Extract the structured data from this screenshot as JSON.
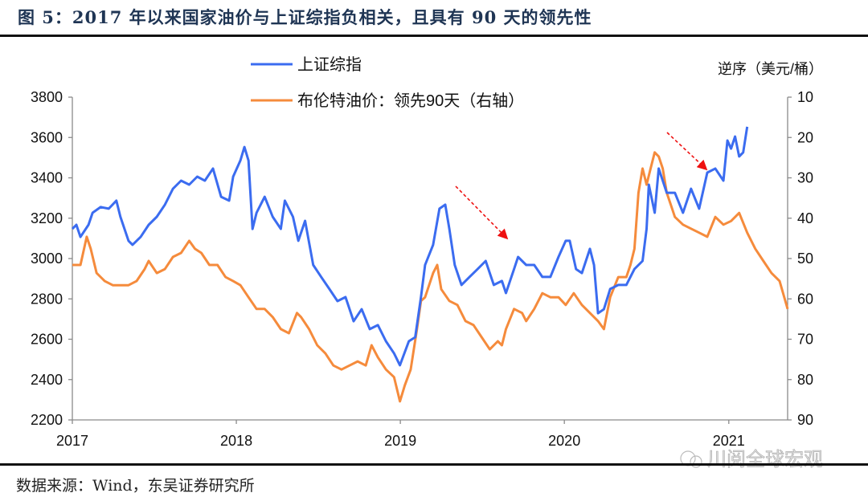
{
  "title": "图 5：2017 年以来国家油价与上证综指负相关，且具有 90 天的领先性",
  "source": "数据来源：Wind，东吴证券研究所",
  "watermark": "川阅全球宏观",
  "chart_data": {
    "type": "line",
    "title": "图 5：2017 年以来国家油价与上证综指负相关，且具有 90 天的领先性",
    "xlabel": "",
    "ylabel": "",
    "y2label": "逆序（美元/桶）",
    "x_ticks": [
      "2017",
      "2018",
      "2019",
      "2020",
      "2021"
    ],
    "xlim": [
      "2017-01-01",
      "2021-05-15"
    ],
    "ylim": [
      2200,
      3800
    ],
    "y_ticks": [
      "2200",
      "2400",
      "2600",
      "2800",
      "3000",
      "3200",
      "3400",
      "3600",
      "3800"
    ],
    "y2lim": [
      10,
      90
    ],
    "y2_inverted": true,
    "y2_ticks": [
      "10",
      "20",
      "30",
      "40",
      "50",
      "60",
      "70",
      "80",
      "90"
    ],
    "grid": false,
    "legend_position": "top-center",
    "annotations": [
      "red dashed arrow pointing down-right near 2019-09",
      "red dashed arrow pointing down-right near 2020-11"
    ],
    "series": [
      {
        "name": "上证综指",
        "axis": "left",
        "color": "#3b6cf0",
        "points": [
          [
            "2017-01-01",
            3147
          ],
          [
            "2017-01-10",
            3167
          ],
          [
            "2017-01-19",
            3107
          ],
          [
            "2017-02-06",
            3167
          ],
          [
            "2017-02-15",
            3227
          ],
          [
            "2017-03-05",
            3255
          ],
          [
            "2017-03-23",
            3247
          ],
          [
            "2017-04-09",
            3287
          ],
          [
            "2017-04-18",
            3207
          ],
          [
            "2017-05-06",
            3088
          ],
          [
            "2017-05-15",
            3068
          ],
          [
            "2017-06-02",
            3107
          ],
          [
            "2017-06-20",
            3167
          ],
          [
            "2017-07-08",
            3207
          ],
          [
            "2017-07-26",
            3267
          ],
          [
            "2017-08-13",
            3346
          ],
          [
            "2017-08-31",
            3386
          ],
          [
            "2017-09-18",
            3366
          ],
          [
            "2017-10-06",
            3406
          ],
          [
            "2017-10-23",
            3386
          ],
          [
            "2017-11-10",
            3446
          ],
          [
            "2017-11-28",
            3306
          ],
          [
            "2017-12-16",
            3287
          ],
          [
            "2017-12-25",
            3406
          ],
          [
            "2018-01-10",
            3486
          ],
          [
            "2018-01-19",
            3553
          ],
          [
            "2018-01-28",
            3486
          ],
          [
            "2018-02-06",
            3147
          ],
          [
            "2018-02-15",
            3227
          ],
          [
            "2018-03-05",
            3306
          ],
          [
            "2018-03-23",
            3207
          ],
          [
            "2018-04-10",
            3147
          ],
          [
            "2018-04-19",
            3287
          ],
          [
            "2018-05-07",
            3207
          ],
          [
            "2018-05-19",
            3088
          ],
          [
            "2018-06-03",
            3187
          ],
          [
            "2018-06-21",
            2968
          ],
          [
            "2018-07-09",
            2908
          ],
          [
            "2018-07-27",
            2849
          ],
          [
            "2018-08-14",
            2789
          ],
          [
            "2018-09-01",
            2809
          ],
          [
            "2018-09-19",
            2689
          ],
          [
            "2018-10-07",
            2749
          ],
          [
            "2018-10-25",
            2650
          ],
          [
            "2018-11-12",
            2670
          ],
          [
            "2018-11-30",
            2590
          ],
          [
            "2018-12-18",
            2530
          ],
          [
            "2018-12-31",
            2471
          ],
          [
            "2019-01-20",
            2590
          ],
          [
            "2019-02-03",
            2610
          ],
          [
            "2019-02-16",
            2809
          ],
          [
            "2019-02-25",
            2968
          ],
          [
            "2019-03-15",
            3068
          ],
          [
            "2019-03-29",
            3247
          ],
          [
            "2019-04-11",
            3267
          ],
          [
            "2019-04-20",
            3147
          ],
          [
            "2019-05-02",
            2968
          ],
          [
            "2019-05-17",
            2869
          ],
          [
            "2019-06-04",
            2909
          ],
          [
            "2019-06-22",
            2948
          ],
          [
            "2019-07-10",
            2988
          ],
          [
            "2019-07-28",
            2869
          ],
          [
            "2019-08-15",
            2889
          ],
          [
            "2019-08-24",
            2829
          ],
          [
            "2019-09-11",
            2948
          ],
          [
            "2019-09-20",
            3008
          ],
          [
            "2019-10-08",
            2968
          ],
          [
            "2019-10-26",
            2968
          ],
          [
            "2019-11-13",
            2909
          ],
          [
            "2019-12-01",
            2909
          ],
          [
            "2019-12-19",
            3008
          ],
          [
            "2020-01-04",
            3088
          ],
          [
            "2020-01-13",
            3088
          ],
          [
            "2020-01-27",
            2948
          ],
          [
            "2020-02-09",
            2928
          ],
          [
            "2020-02-27",
            3048
          ],
          [
            "2020-03-07",
            2968
          ],
          [
            "2020-03-16",
            2729
          ],
          [
            "2020-03-29",
            2749
          ],
          [
            "2020-04-12",
            2849
          ],
          [
            "2020-04-30",
            2869
          ],
          [
            "2020-05-18",
            2869
          ],
          [
            "2020-06-05",
            2948
          ],
          [
            "2020-06-23",
            2988
          ],
          [
            "2020-07-02",
            3147
          ],
          [
            "2020-07-07",
            3366
          ],
          [
            "2020-07-20",
            3227
          ],
          [
            "2020-07-29",
            3446
          ],
          [
            "2020-08-16",
            3326
          ],
          [
            "2020-09-03",
            3326
          ],
          [
            "2020-09-21",
            3227
          ],
          [
            "2020-10-09",
            3346
          ],
          [
            "2020-10-27",
            3247
          ],
          [
            "2020-11-14",
            3426
          ],
          [
            "2020-12-02",
            3446
          ],
          [
            "2020-12-20",
            3386
          ],
          [
            "2020-12-29",
            3585
          ],
          [
            "2021-01-06",
            3545
          ],
          [
            "2021-01-15",
            3605
          ],
          [
            "2021-01-24",
            3506
          ],
          [
            "2021-02-02",
            3526
          ],
          [
            "2021-02-11",
            3653
          ]
        ]
      },
      {
        "name": "布伦特油价：领先90天（右轴）",
        "axis": "right",
        "color": "#f58b3c",
        "points": [
          [
            "2017-01-01",
            51.6
          ],
          [
            "2017-01-19",
            51.6
          ],
          [
            "2017-02-02",
            44.6
          ],
          [
            "2017-02-11",
            47.6
          ],
          [
            "2017-02-24",
            53.6
          ],
          [
            "2017-03-14",
            55.6
          ],
          [
            "2017-04-01",
            56.6
          ],
          [
            "2017-04-18",
            56.6
          ],
          [
            "2017-05-06",
            56.6
          ],
          [
            "2017-05-24",
            55.6
          ],
          [
            "2017-06-11",
            52.6
          ],
          [
            "2017-06-20",
            50.6
          ],
          [
            "2017-07-08",
            53.6
          ],
          [
            "2017-07-26",
            52.6
          ],
          [
            "2017-08-13",
            49.6
          ],
          [
            "2017-08-31",
            48.6
          ],
          [
            "2017-09-18",
            45.6
          ],
          [
            "2017-10-01",
            47.6
          ],
          [
            "2017-10-15",
            48.6
          ],
          [
            "2017-11-02",
            51.6
          ],
          [
            "2017-11-20",
            51.6
          ],
          [
            "2017-12-08",
            54.6
          ],
          [
            "2017-12-25",
            55.6
          ],
          [
            "2018-01-10",
            56.6
          ],
          [
            "2018-01-28",
            59.6
          ],
          [
            "2018-02-15",
            62.5
          ],
          [
            "2018-03-05",
            62.5
          ],
          [
            "2018-03-23",
            64.5
          ],
          [
            "2018-04-10",
            67.5
          ],
          [
            "2018-04-28",
            68.5
          ],
          [
            "2018-05-16",
            63.5
          ],
          [
            "2018-05-25",
            64.5
          ],
          [
            "2018-06-12",
            67.5
          ],
          [
            "2018-06-30",
            71.5
          ],
          [
            "2018-07-18",
            73.5
          ],
          [
            "2018-08-05",
            76.5
          ],
          [
            "2018-08-23",
            77.5
          ],
          [
            "2018-09-10",
            76.5
          ],
          [
            "2018-09-28",
            75.5
          ],
          [
            "2018-10-16",
            76.5
          ],
          [
            "2018-10-29",
            71.5
          ],
          [
            "2018-11-12",
            74.5
          ],
          [
            "2018-11-30",
            77.5
          ],
          [
            "2018-12-18",
            79.4
          ],
          [
            "2018-12-31",
            85.4
          ],
          [
            "2019-01-11",
            81.4
          ],
          [
            "2019-01-24",
            77.5
          ],
          [
            "2019-02-07",
            67.5
          ],
          [
            "2019-02-16",
            60.5
          ],
          [
            "2019-02-25",
            59.6
          ],
          [
            "2019-03-15",
            53.6
          ],
          [
            "2019-03-24",
            51.6
          ],
          [
            "2019-04-02",
            57.6
          ],
          [
            "2019-04-20",
            60.5
          ],
          [
            "2019-05-08",
            61.5
          ],
          [
            "2019-05-26",
            65.5
          ],
          [
            "2019-06-13",
            66.5
          ],
          [
            "2019-07-01",
            69.5
          ],
          [
            "2019-07-19",
            72.5
          ],
          [
            "2019-08-06",
            70.5
          ],
          [
            "2019-08-15",
            71.5
          ],
          [
            "2019-08-24",
            67.5
          ],
          [
            "2019-09-11",
            62.5
          ],
          [
            "2019-09-29",
            63.5
          ],
          [
            "2019-10-08",
            65.5
          ],
          [
            "2019-10-26",
            62.5
          ],
          [
            "2019-11-13",
            58.6
          ],
          [
            "2019-12-01",
            59.6
          ],
          [
            "2019-12-19",
            59.6
          ],
          [
            "2020-01-04",
            61.5
          ],
          [
            "2020-01-22",
            58.6
          ],
          [
            "2020-02-09",
            61.5
          ],
          [
            "2020-02-27",
            63.5
          ],
          [
            "2020-03-16",
            65.5
          ],
          [
            "2020-03-29",
            67.5
          ],
          [
            "2020-04-12",
            59.6
          ],
          [
            "2020-04-30",
            54.6
          ],
          [
            "2020-05-18",
            54.6
          ],
          [
            "2020-05-27",
            51.6
          ],
          [
            "2020-06-05",
            47.6
          ],
          [
            "2020-06-14",
            33.7
          ],
          [
            "2020-06-23",
            27.7
          ],
          [
            "2020-07-02",
            31.7
          ],
          [
            "2020-07-11",
            27.7
          ],
          [
            "2020-07-20",
            23.7
          ],
          [
            "2020-07-29",
            24.7
          ],
          [
            "2020-08-07",
            27.7
          ],
          [
            "2020-08-16",
            33.7
          ],
          [
            "2020-08-25",
            36.7
          ],
          [
            "2020-09-03",
            39.7
          ],
          [
            "2020-09-21",
            41.6
          ],
          [
            "2020-10-09",
            42.6
          ],
          [
            "2020-10-27",
            43.6
          ],
          [
            "2020-11-14",
            44.6
          ],
          [
            "2020-12-02",
            39.7
          ],
          [
            "2020-12-20",
            41.6
          ],
          [
            "2021-01-06",
            40.7
          ],
          [
            "2021-01-24",
            38.7
          ],
          [
            "2021-02-11",
            43.6
          ],
          [
            "2021-03-01",
            47.6
          ],
          [
            "2021-03-19",
            50.6
          ],
          [
            "2021-04-06",
            53.6
          ],
          [
            "2021-04-24",
            55.6
          ],
          [
            "2021-05-12",
            62.5
          ]
        ]
      }
    ]
  }
}
